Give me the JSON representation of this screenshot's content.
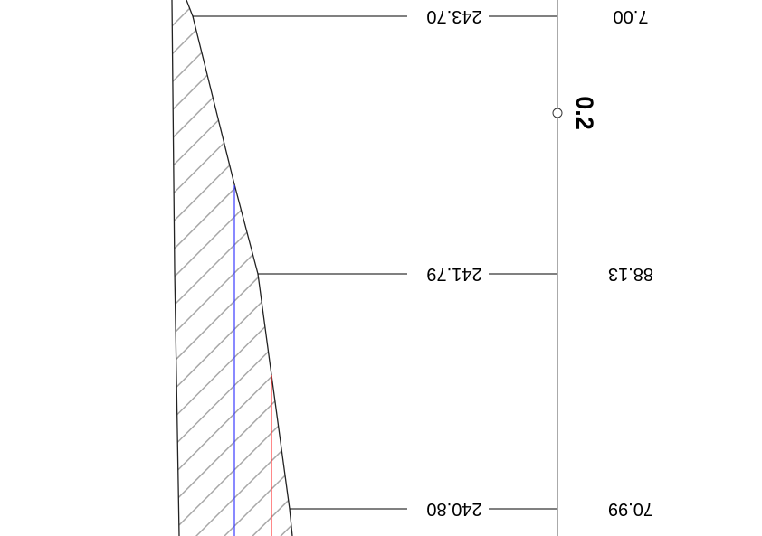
{
  "station_label": "0.2",
  "rows": [
    {
      "elevation": "243.70",
      "value": "7.00"
    },
    {
      "elevation": "241.79",
      "value": "88.13"
    },
    {
      "elevation": "240.80",
      "value": "70.99"
    }
  ],
  "colors": {
    "line": "#000000",
    "hatch": "#a8a8a8",
    "axis": "#666666",
    "blue_line": "#3b3bff",
    "red_line": "#ff3b3b"
  }
}
